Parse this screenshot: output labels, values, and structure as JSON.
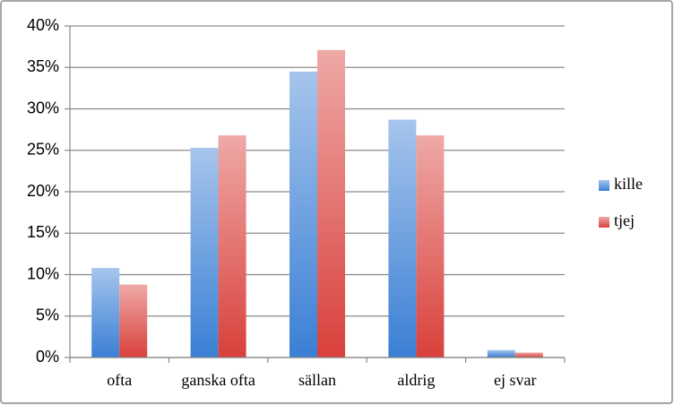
{
  "chart_data": {
    "type": "bar",
    "categories": [
      "ofta",
      "ganska ofta",
      "sällan",
      "aldrig",
      "ej svar"
    ],
    "series": [
      {
        "name": "kille",
        "color": "#3a7fd5",
        "values": [
          10.8,
          25.3,
          34.5,
          28.7,
          0.9
        ]
      },
      {
        "name": "tjej",
        "color": "#d9403b",
        "values": [
          8.8,
          26.8,
          37.1,
          26.8,
          0.6
        ]
      }
    ],
    "ylim": [
      0,
      40
    ],
    "yticks": [
      {
        "value": 0,
        "label": "0%"
      },
      {
        "value": 5,
        "label": "5%"
      },
      {
        "value": 10,
        "label": "10%"
      },
      {
        "value": 15,
        "label": "15%"
      },
      {
        "value": 20,
        "label": "20%"
      },
      {
        "value": 25,
        "label": "25%"
      },
      {
        "value": 30,
        "label": "30%"
      },
      {
        "value": 35,
        "label": "35%"
      },
      {
        "value": 40,
        "label": "40%"
      }
    ],
    "grid": true,
    "legend": "right"
  }
}
